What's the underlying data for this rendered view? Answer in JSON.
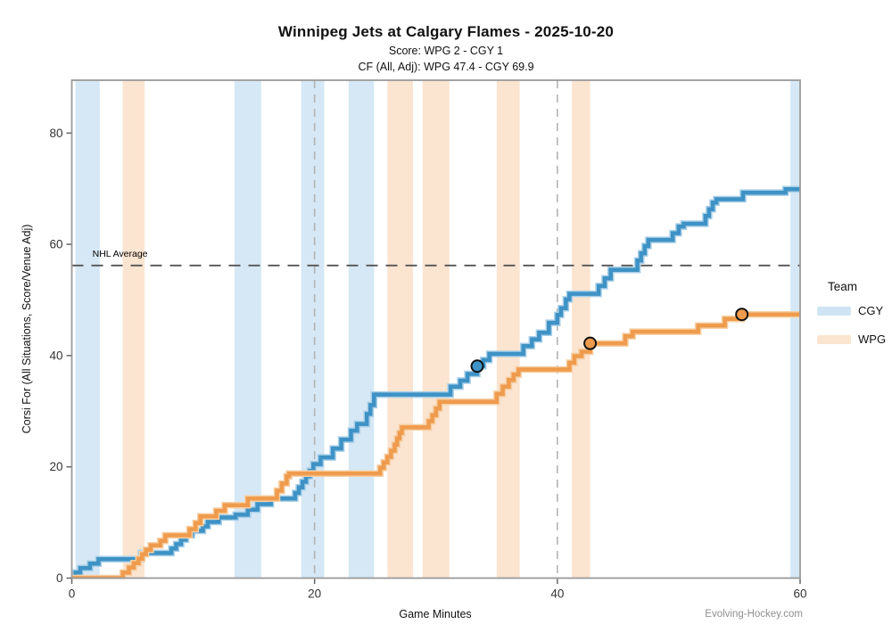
{
  "header": {
    "title": "Winnipeg Jets at Calgary Flames - 2025-10-20",
    "subtitle_score": "Score: WPG 2 - CGY 1",
    "subtitle_cf": "CF (All, Adj): WPG 47.4 - CGY 69.9"
  },
  "footer": {
    "watermark": "Evolving-Hockey.com"
  },
  "chart_data": {
    "type": "line",
    "style": "cumulative step (step-after)",
    "title": "Winnipeg Jets at Calgary Flames - 2025-10-20",
    "xlabel": "Game Minutes",
    "ylabel": "Corsi For (All Situations, Score/Venue Adj)",
    "xlim": [
      0,
      60
    ],
    "ylim": [
      0,
      89.5
    ],
    "x_ticks": [
      "0",
      "20",
      "40",
      "60"
    ],
    "x_tick_values": [
      0,
      20,
      40,
      60
    ],
    "y_ticks": [
      "0",
      "20",
      "40",
      "60",
      "80"
    ],
    "y_tick_values": [
      0,
      20,
      40,
      60,
      80
    ],
    "grid": false,
    "period_lines_x": [
      20,
      40
    ],
    "nhl_average": {
      "value": 56.2,
      "label": "NHL Average"
    },
    "legend": {
      "title": "Team",
      "position": "right",
      "entries": [
        {
          "label": "CGY",
          "swatch_color": "#cfe4f2"
        },
        {
          "label": "WPG",
          "swatch_color": "#fbe4d0"
        }
      ]
    },
    "final_cf": {
      "WPG": 47.4,
      "CGY": 69.9
    },
    "series": [
      {
        "name": "CGY",
        "line_color": "#3e92c5",
        "halo_color": "#a8cfe8",
        "band_color": "#d6e8f5",
        "points": [
          [
            0,
            0
          ],
          [
            0.3,
            1.0
          ],
          [
            0.7,
            1.8
          ],
          [
            1.5,
            2.6
          ],
          [
            2.2,
            3.4
          ],
          [
            5.7,
            4.5
          ],
          [
            8.2,
            5.3
          ],
          [
            8.6,
            6.1
          ],
          [
            9.0,
            6.9
          ],
          [
            9.4,
            7.7
          ],
          [
            9.9,
            8.5
          ],
          [
            10.8,
            9.3
          ],
          [
            11.2,
            10.1
          ],
          [
            12.1,
            10.9
          ],
          [
            13.5,
            11.4
          ],
          [
            14.5,
            12.3
          ],
          [
            15.3,
            13.3
          ],
          [
            16.4,
            14.3
          ],
          [
            18.4,
            15.3
          ],
          [
            18.7,
            16.3
          ],
          [
            19.0,
            17.3
          ],
          [
            19.3,
            18.3
          ],
          [
            19.6,
            19.3
          ],
          [
            19.9,
            20.5
          ],
          [
            20.5,
            21.7
          ],
          [
            21.5,
            23.3
          ],
          [
            22.2,
            24.9
          ],
          [
            23.0,
            26.5
          ],
          [
            23.5,
            27.7
          ],
          [
            24.3,
            29.5
          ],
          [
            24.6,
            31.1
          ],
          [
            24.9,
            33.0
          ],
          [
            31.2,
            34.4
          ],
          [
            32.0,
            35.5
          ],
          [
            32.6,
            36.7
          ],
          [
            33.4,
            38.1
          ],
          [
            33.9,
            39.2
          ],
          [
            34.4,
            40.3
          ],
          [
            37.2,
            41.7
          ],
          [
            37.9,
            42.9
          ],
          [
            38.5,
            44.1
          ],
          [
            39.3,
            45.9
          ],
          [
            40.0,
            47.3
          ],
          [
            40.3,
            48.5
          ],
          [
            40.7,
            50.1
          ],
          [
            41.0,
            51.1
          ],
          [
            43.4,
            52.5
          ],
          [
            43.9,
            53.9
          ],
          [
            44.4,
            55.4
          ],
          [
            46.6,
            57.1
          ],
          [
            46.9,
            58.4
          ],
          [
            47.2,
            59.7
          ],
          [
            47.5,
            60.8
          ],
          [
            49.5,
            62.0
          ],
          [
            50.0,
            63.2
          ],
          [
            50.4,
            63.7
          ],
          [
            52.2,
            65.1
          ],
          [
            52.5,
            66.3
          ],
          [
            52.8,
            67.5
          ],
          [
            53.1,
            68.1
          ],
          [
            55.3,
            69.3
          ],
          [
            58.8,
            69.9
          ],
          [
            60,
            69.9
          ]
        ],
        "goals": [
          [
            33.4,
            38.1
          ]
        ]
      },
      {
        "name": "WPG",
        "line_color": "#ef9b4d",
        "halo_color": "#f6cfa3",
        "band_color": "#fbe4d0",
        "points": [
          [
            0,
            0
          ],
          [
            4.2,
            1.0
          ],
          [
            4.7,
            1.9
          ],
          [
            5.1,
            2.7
          ],
          [
            5.5,
            3.5
          ],
          [
            5.8,
            4.3
          ],
          [
            6.1,
            5.1
          ],
          [
            6.5,
            5.9
          ],
          [
            7.3,
            6.7
          ],
          [
            7.7,
            7.7
          ],
          [
            9.7,
            8.8
          ],
          [
            10.2,
            9.9
          ],
          [
            10.6,
            11.1
          ],
          [
            11.9,
            12.1
          ],
          [
            12.6,
            13.1
          ],
          [
            14.5,
            14.3
          ],
          [
            16.9,
            15.7
          ],
          [
            17.3,
            17.0
          ],
          [
            17.7,
            18.3
          ],
          [
            17.9,
            18.8
          ],
          [
            25.4,
            19.8
          ],
          [
            25.7,
            20.8
          ],
          [
            26.0,
            21.8
          ],
          [
            26.3,
            22.9
          ],
          [
            26.6,
            24.0
          ],
          [
            26.8,
            25.1
          ],
          [
            27.0,
            26.1
          ],
          [
            27.2,
            27.1
          ],
          [
            29.4,
            28.2
          ],
          [
            29.7,
            29.3
          ],
          [
            30.0,
            30.5
          ],
          [
            30.3,
            31.7
          ],
          [
            35.0,
            33.1
          ],
          [
            35.5,
            34.4
          ],
          [
            36.0,
            35.6
          ],
          [
            36.4,
            36.6
          ],
          [
            36.8,
            37.5
          ],
          [
            41.0,
            38.7
          ],
          [
            41.4,
            39.9
          ],
          [
            42.0,
            40.7
          ],
          [
            42.7,
            42.2
          ],
          [
            45.6,
            43.5
          ],
          [
            46.2,
            44.3
          ],
          [
            51.6,
            45.4
          ],
          [
            53.8,
            46.6
          ],
          [
            55.2,
            47.4
          ],
          [
            60,
            47.4
          ]
        ],
        "goals": [
          [
            42.7,
            42.2
          ],
          [
            55.2,
            47.4
          ]
        ]
      }
    ],
    "powerplay_bands": [
      {
        "team": "CGY",
        "from": 0.3,
        "to": 2.3
      },
      {
        "team": "WPG",
        "from": 4.2,
        "to": 6.0
      },
      {
        "team": "CGY",
        "from": 13.4,
        "to": 15.6
      },
      {
        "team": "CGY",
        "from": 18.9,
        "to": 20.8
      },
      {
        "team": "CGY",
        "from": 22.8,
        "to": 24.9
      },
      {
        "team": "WPG",
        "from": 26.0,
        "to": 28.1
      },
      {
        "team": "WPG",
        "from": 28.9,
        "to": 31.1
      },
      {
        "team": "WPG",
        "from": 35.0,
        "to": 36.9
      },
      {
        "team": "WPG",
        "from": 41.2,
        "to": 42.7
      },
      {
        "team": "CGY",
        "from": 59.2,
        "to": 60.0
      }
    ],
    "colors": {
      "panel_border": "#9a9a9a",
      "nhl_average_line": "#555555",
      "period_line": "#b3b3b3",
      "tick_text": "#333333",
      "goal_marker_stroke": "#111111"
    }
  }
}
